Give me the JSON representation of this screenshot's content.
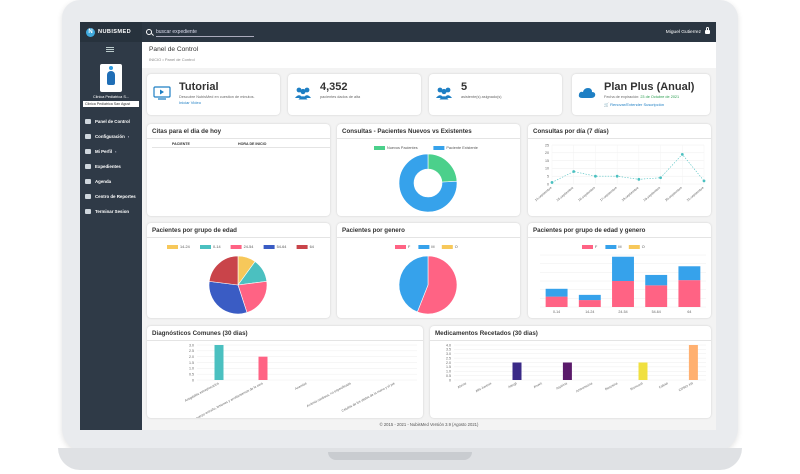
{
  "topbar": {
    "brand": "NUBISMED",
    "search_placeholder": "buscar expediente",
    "user_name": "Miguel Gutierrez"
  },
  "sidebar": {
    "clinic_name": "Clinica Pediatrica S...",
    "clinic_select": "Clinica Pediatrica San Agust",
    "items": [
      {
        "label": "Panel de Control",
        "icon": "dashboard-icon"
      },
      {
        "label": "Configuración",
        "icon": "gear-icon",
        "caret": "‹"
      },
      {
        "label": "Mi Perfil",
        "icon": "user-icon",
        "caret": "‹"
      },
      {
        "label": "Expedientes",
        "icon": "users-icon"
      },
      {
        "label": "Agenda",
        "icon": "calendar-icon"
      },
      {
        "label": "Centro de Reportes",
        "icon": "report-icon"
      },
      {
        "label": "Terminar Sesion",
        "icon": "logout-icon"
      }
    ]
  },
  "page": {
    "title": "Panel de Control",
    "breadcrumb": "INICIO  • Panel de Control"
  },
  "stats": {
    "tutorial": {
      "title": "Tutorial",
      "sub": "Descubre NubisMed en cuestion de minutos.",
      "link": "Iniciar Video",
      "icon": "video-icon"
    },
    "patients": {
      "title": "4,352",
      "sub": "pacientes dados de alta",
      "icon": "users-icon"
    },
    "assistants": {
      "title": "5",
      "sub": "asistente(s) asignado(s)",
      "icon": "users-icon"
    },
    "plan": {
      "title": "Plan Plus (Anual)",
      "sub_prefix": "Fecha de expiración:",
      "sub_date": "23 de Octubre de 2021",
      "link": "Renovar/Extender Suscripción",
      "icon": "cloud-icon"
    }
  },
  "citas": {
    "title": "Citas para el dia de hoy",
    "columns": [
      "PACIENTE",
      "HORA DE INICIO"
    ]
  },
  "colors": {
    "teal": "#4bc0c0",
    "blue": "#36a2eb",
    "pink": "#ff6384",
    "green": "#4bd08b",
    "yellow": "#f7c85a",
    "red": "#c9444a",
    "purple": "#3a2a87",
    "navy": "#3a5cc4"
  },
  "chart_data": [
    {
      "type": "pie",
      "title": "Consultas - Pacientes Nuevos vs Existentes",
      "categories": [
        "Nuevos Pacientes",
        "Paciente Existente"
      ],
      "values": [
        24,
        76
      ],
      "donut": true,
      "legend": "top"
    },
    {
      "type": "line",
      "title": "Consultas por día (7 días)",
      "x": [
        "14-septiembre",
        "15-septiembre",
        "16-septiembre",
        "17-septiembre",
        "18-septiembre",
        "19-septiembre",
        "20-septiembre",
        "21-septiembre"
      ],
      "values": [
        1,
        8,
        5,
        5,
        3,
        4,
        19,
        2
      ],
      "ylim": [
        0,
        25
      ],
      "yticks": [
        0,
        5,
        10,
        15,
        20,
        25
      ]
    },
    {
      "type": "pie",
      "title": "Pacientes por grupo de edad",
      "categories": [
        "14-24",
        "0-14",
        "24-54",
        "54-64",
        "64"
      ],
      "values": [
        10,
        13,
        22,
        32,
        23
      ],
      "legend": "top"
    },
    {
      "type": "pie",
      "title": "Pacientes por genero",
      "categories": [
        "F",
        "M",
        "O"
      ],
      "values": [
        56,
        44,
        0
      ],
      "legend": "top"
    },
    {
      "type": "bar",
      "stacked": true,
      "title": "Pacientes por grupo de edad y genero",
      "categories": [
        "0-14",
        "14-24",
        "24-54",
        "54-64",
        "64"
      ],
      "series": [
        {
          "name": "F",
          "values": [
            120,
            80,
            300,
            250,
            310
          ]
        },
        {
          "name": "M",
          "values": [
            90,
            60,
            280,
            120,
            160
          ]
        },
        {
          "name": "O",
          "values": [
            0,
            0,
            0,
            0,
            0
          ]
        }
      ],
      "ylim": [
        0,
        600
      ]
    },
    {
      "type": "bar",
      "title": "Diagnósticos Comunes (30 dias)",
      "categories": [
        "Amigdalitis estreptococica",
        "Ruptura de cuerpo extraño, lesiones y arrollamientos de la cara",
        "Anemias",
        "Arritmia cardiaca, no especificada",
        "Celulitis de los dedos de la mano y el pie"
      ],
      "values": [
        3,
        2,
        0,
        0,
        0
      ],
      "ylim": [
        0,
        3
      ],
      "yticks": [
        "0",
        "0.5",
        "1.0",
        "1.5",
        "2.0",
        "2.5",
        "3.0"
      ]
    },
    {
      "type": "bar",
      "title": "Medicamentos Recetados (30 dias)",
      "categories": [
        "Abrine",
        "Alfa Juvenix",
        "Alergil",
        "Anuvit",
        "Aspirina",
        "Azitromicina",
        "Besosina",
        "Broncocil",
        "Calciol",
        "CIPRO XR"
      ],
      "values": [
        0,
        0,
        2,
        0,
        2,
        0,
        0,
        2,
        0,
        4
      ],
      "ylim": [
        0,
        4
      ],
      "yticks": [
        "0",
        "0.5",
        "1.0",
        "1.5",
        "2.0",
        "2.5",
        "3.0",
        "3.5",
        "4.0"
      ]
    }
  ],
  "footer": "© 2015 - 2021 - NubisMed Versión 3.9 (Agosto 2021)"
}
